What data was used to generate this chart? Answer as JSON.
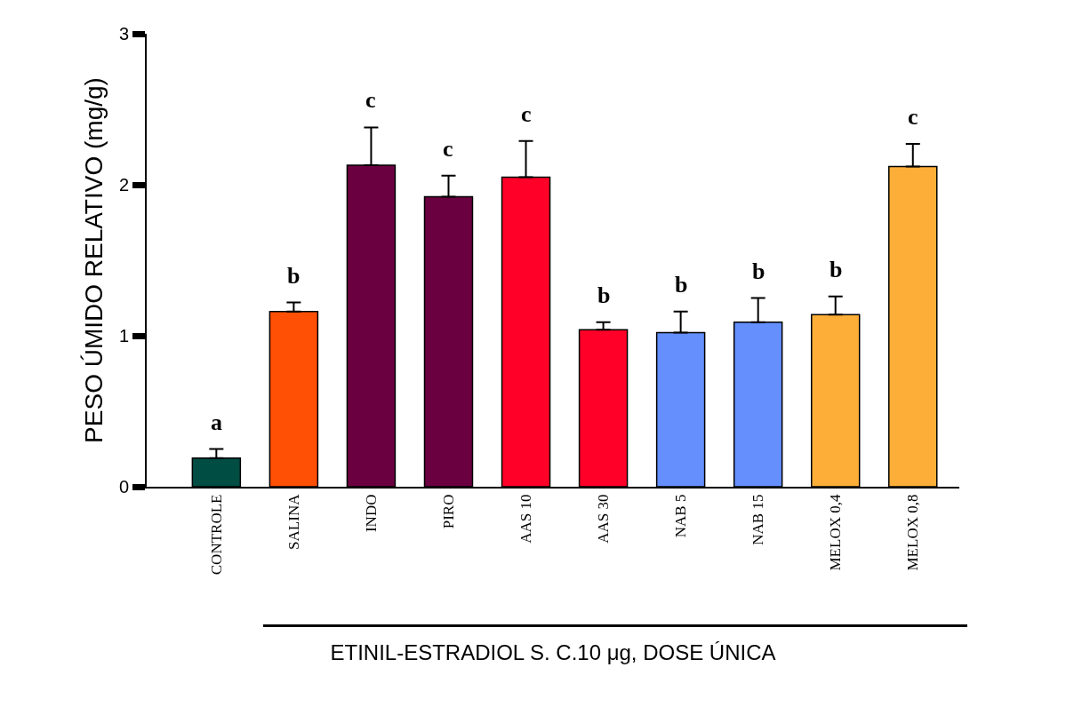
{
  "chart_data": {
    "type": "bar",
    "ylabel": "PESO ÚMIDO RELATIVO (mg/g)",
    "xlabel": "ETINIL-ESTRADIOL S. C.10 μg, DOSE ÚNICA",
    "categories": [
      "CONTROLE",
      "SALINA",
      "INDO",
      "PIRO",
      "AAS 10",
      "AAS 30",
      "NAB 5",
      "NAB 15",
      "MELOX 0,4",
      "MELOX 0,8"
    ],
    "values": [
      0.19,
      1.16,
      2.13,
      1.92,
      2.05,
      1.04,
      1.02,
      1.09,
      1.14,
      2.12
    ],
    "colors": [
      "#004d44",
      "#ff5005",
      "#6b0040",
      "#6b0040",
      "#ff0028",
      "#ff0028",
      "#648ffd",
      "#648ffd",
      "#fdae38",
      "#fdae38"
    ],
    "errors": [
      [
        0.19,
        0.25
      ],
      [
        1.16,
        1.22
      ],
      [
        2.13,
        2.38
      ],
      [
        1.92,
        2.06
      ],
      [
        2.05,
        2.29
      ],
      [
        1.04,
        1.09
      ],
      [
        1.02,
        1.16
      ],
      [
        1.09,
        1.25
      ],
      [
        1.14,
        1.26
      ],
      [
        2.12,
        2.27
      ]
    ],
    "annotations": [
      "a",
      "b",
      "c",
      "c",
      "c",
      "b",
      "b",
      "b",
      "b",
      "c"
    ],
    "ylim": [
      0,
      3
    ],
    "yticks": [
      0,
      1,
      2,
      3
    ]
  }
}
